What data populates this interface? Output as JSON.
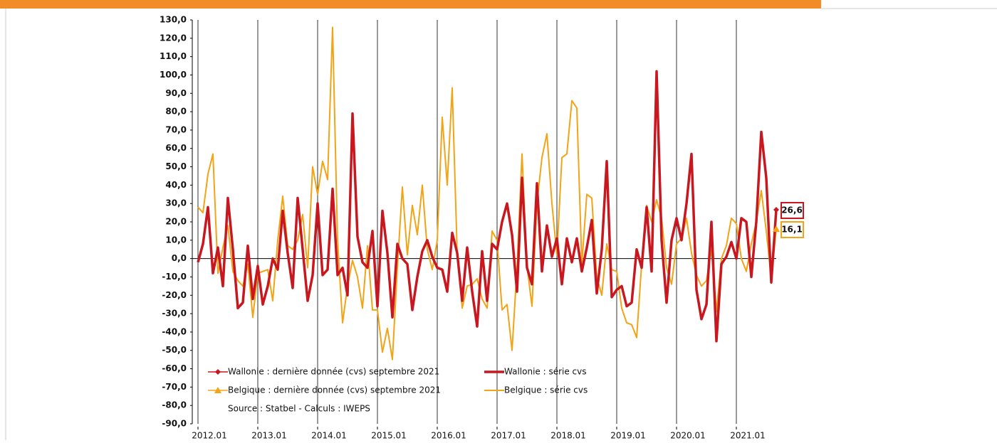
{
  "chart_data": {
    "type": "line",
    "categories": [
      "2012.01",
      null,
      null,
      null,
      null,
      null,
      null,
      null,
      null,
      null,
      null,
      null,
      "2013.01",
      null,
      null,
      null,
      null,
      null,
      null,
      null,
      null,
      null,
      null,
      null,
      "2014.01",
      null,
      null,
      null,
      null,
      null,
      null,
      null,
      null,
      null,
      null,
      null,
      "2015.01",
      null,
      null,
      null,
      null,
      null,
      null,
      null,
      null,
      null,
      null,
      null,
      "2016.01",
      null,
      null,
      null,
      null,
      null,
      null,
      null,
      null,
      null,
      null,
      null,
      "2017.01",
      null,
      null,
      null,
      null,
      null,
      null,
      null,
      null,
      null,
      null,
      null,
      "2018.01",
      null,
      null,
      null,
      null,
      null,
      null,
      null,
      null,
      null,
      null,
      null,
      "2019.01",
      null,
      null,
      null,
      null,
      null,
      null,
      null,
      null,
      null,
      null,
      null,
      "2020.01",
      null,
      null,
      null,
      null,
      null,
      null,
      null,
      null,
      null,
      null,
      null,
      "2021.01",
      null,
      null,
      null,
      null,
      null,
      null,
      null,
      null
    ],
    "series": [
      {
        "name": "Wallonie : dernière donnée (cvs) septembre 2021",
        "color": "#c8171e",
        "marker": "diamond",
        "values": [
          null,
          null,
          null,
          null,
          null,
          null,
          null,
          null,
          null,
          null,
          null,
          null,
          null,
          null,
          null,
          null,
          null,
          null,
          null,
          null,
          null,
          null,
          null,
          null,
          null,
          null,
          null,
          null,
          null,
          null,
          null,
          null,
          null,
          null,
          null,
          null,
          null,
          null,
          null,
          null,
          null,
          null,
          null,
          null,
          null,
          null,
          null,
          null,
          null,
          null,
          null,
          null,
          null,
          null,
          null,
          null,
          null,
          null,
          null,
          null,
          null,
          null,
          null,
          null,
          null,
          null,
          null,
          null,
          null,
          null,
          null,
          null,
          null,
          null,
          null,
          null,
          null,
          null,
          null,
          null,
          null,
          null,
          null,
          null,
          null,
          null,
          null,
          null,
          null,
          null,
          null,
          null,
          null,
          null,
          null,
          null,
          null,
          null,
          null,
          null,
          null,
          null,
          null,
          null,
          null,
          null,
          null,
          null,
          null,
          null,
          null,
          null,
          null,
          null,
          null,
          null,
          26.6
        ],
        "value_labels": [
          null,
          null,
          null,
          null,
          null,
          null,
          null,
          null,
          null,
          null,
          null,
          null,
          null,
          null,
          null,
          null,
          null,
          null,
          null,
          null,
          null,
          null,
          null,
          null,
          null,
          null,
          null,
          null,
          null,
          null,
          null,
          null,
          null,
          null,
          null,
          null,
          null,
          null,
          null,
          null,
          null,
          null,
          null,
          null,
          null,
          null,
          null,
          null,
          null,
          null,
          null,
          null,
          null,
          null,
          null,
          null,
          null,
          null,
          null,
          null,
          null,
          null,
          null,
          null,
          null,
          null,
          null,
          null,
          null,
          null,
          null,
          null,
          null,
          null,
          null,
          null,
          null,
          null,
          null,
          null,
          null,
          null,
          null,
          null,
          null,
          null,
          null,
          null,
          null,
          null,
          null,
          null,
          null,
          null,
          null,
          null,
          null,
          null,
          null,
          null,
          null,
          null,
          null,
          null,
          null,
          null,
          null,
          null,
          null,
          null,
          null,
          null,
          null,
          null,
          null,
          null,
          "26,6"
        ]
      },
      {
        "name": "Wallonie : série cvs",
        "color": "#c8171e",
        "width": 3.5,
        "values": [
          -2,
          8,
          28,
          -8,
          6,
          -15,
          33,
          5,
          -27,
          -24,
          7,
          -22,
          -4,
          -25,
          -15,
          0,
          -6,
          26,
          3,
          -16,
          33,
          5,
          -23,
          -9,
          30,
          -9,
          -6,
          38,
          -9,
          -5,
          -20,
          79,
          12,
          -2,
          -5,
          15,
          -26,
          26,
          3,
          -32,
          8,
          0,
          -3,
          -28,
          -10,
          4,
          10,
          1,
          -5,
          -6,
          -18,
          14,
          3,
          -23,
          6,
          -18,
          -37,
          4,
          -23,
          8,
          5,
          20,
          30,
          13,
          -18,
          44,
          -5,
          -14,
          41,
          -7,
          18,
          1,
          11,
          -14,
          11,
          -2,
          11,
          -7,
          6,
          21,
          -19,
          5,
          53,
          -21,
          -17,
          -15,
          -26,
          -24,
          5,
          -5,
          28,
          -7,
          102,
          10,
          -24,
          10,
          22,
          10,
          30,
          57,
          -17,
          -33,
          -25,
          20,
          -45,
          -3,
          1,
          9,
          0,
          22,
          20,
          -10,
          20,
          69,
          44,
          -13,
          26.6
        ]
      },
      {
        "name": "Belgique : dernière donnée (cvs) septembre 2021",
        "color": "#f2a416",
        "marker": "triangle",
        "values": [
          null,
          null,
          null,
          null,
          null,
          null,
          null,
          null,
          null,
          null,
          null,
          null,
          null,
          null,
          null,
          null,
          null,
          null,
          null,
          null,
          null,
          null,
          null,
          null,
          null,
          null,
          null,
          null,
          null,
          null,
          null,
          null,
          null,
          null,
          null,
          null,
          null,
          null,
          null,
          null,
          null,
          null,
          null,
          null,
          null,
          null,
          null,
          null,
          null,
          null,
          null,
          null,
          null,
          null,
          null,
          null,
          null,
          null,
          null,
          null,
          null,
          null,
          null,
          null,
          null,
          null,
          null,
          null,
          null,
          null,
          null,
          null,
          null,
          null,
          null,
          null,
          null,
          null,
          null,
          null,
          null,
          null,
          null,
          null,
          null,
          null,
          null,
          null,
          null,
          null,
          null,
          null,
          null,
          null,
          null,
          null,
          null,
          null,
          null,
          null,
          null,
          null,
          null,
          null,
          null,
          null,
          null,
          null,
          null,
          null,
          null,
          null,
          null,
          null,
          null,
          null,
          16.1
        ],
        "value_labels": [
          null,
          null,
          null,
          null,
          null,
          null,
          null,
          null,
          null,
          null,
          null,
          null,
          null,
          null,
          null,
          null,
          null,
          null,
          null,
          null,
          null,
          null,
          null,
          null,
          null,
          null,
          null,
          null,
          null,
          null,
          null,
          null,
          null,
          null,
          null,
          null,
          null,
          null,
          null,
          null,
          null,
          null,
          null,
          null,
          null,
          null,
          null,
          null,
          null,
          null,
          null,
          null,
          null,
          null,
          null,
          null,
          null,
          null,
          null,
          null,
          null,
          null,
          null,
          null,
          null,
          null,
          null,
          null,
          null,
          null,
          null,
          null,
          null,
          null,
          null,
          null,
          null,
          null,
          null,
          null,
          null,
          null,
          null,
          null,
          null,
          null,
          null,
          null,
          null,
          null,
          null,
          null,
          null,
          null,
          null,
          null,
          null,
          null,
          null,
          null,
          null,
          null,
          null,
          null,
          null,
          null,
          null,
          null,
          null,
          null,
          null,
          null,
          null,
          null,
          null,
          null,
          "16,1"
        ]
      },
      {
        "name": "Belgique : série cvs",
        "color": "#f2a416",
        "width": 2,
        "values": [
          28,
          25,
          46,
          57,
          -8,
          6,
          18,
          -7,
          -12,
          -15,
          -3,
          -32,
          -8,
          -7,
          -6,
          -23,
          10,
          34,
          7,
          5,
          10,
          24,
          -5,
          50,
          35,
          53,
          43,
          126,
          10,
          -35,
          -15,
          -1,
          -10,
          -27,
          7,
          -28,
          -28,
          -51,
          -38,
          -55,
          -5,
          39,
          2,
          29,
          13,
          40,
          5,
          -6,
          10,
          77,
          40,
          93,
          3,
          -27,
          -15,
          -14,
          -11,
          -22,
          -27,
          15,
          10,
          -28,
          -25,
          -50,
          -5,
          57,
          -4,
          -26,
          30,
          55,
          68,
          30,
          2,
          55,
          57,
          86,
          82,
          -3,
          35,
          33,
          -10,
          -20,
          8,
          -6,
          -7,
          -27,
          -35,
          -36,
          -43,
          -3,
          29,
          20,
          32,
          22,
          -5,
          -14,
          8,
          11,
          22,
          3,
          -9,
          -15,
          -12,
          5,
          -29,
          0,
          7,
          22,
          19,
          0,
          -7,
          8,
          20,
          37,
          15,
          -11,
          16.1
        ]
      }
    ],
    "ylim": [
      -90,
      130
    ],
    "yticks": [
      {
        "value": 130,
        "label": "130,0"
      },
      {
        "value": 120,
        "label": "120,0"
      },
      {
        "value": 110,
        "label": "110,0"
      },
      {
        "value": 100,
        "label": "100,0"
      },
      {
        "value": 90,
        "label": "90,0"
      },
      {
        "value": 80,
        "label": "80,0"
      },
      {
        "value": 70,
        "label": "70,0"
      },
      {
        "value": 60,
        "label": "60,0"
      },
      {
        "value": 50,
        "label": "50,0"
      },
      {
        "value": 40,
        "label": "40,0"
      },
      {
        "value": 30,
        "label": "30,0"
      },
      {
        "value": 20,
        "label": "20,0"
      },
      {
        "value": 10,
        "label": "10,0"
      },
      {
        "value": 0,
        "label": "0,0"
      },
      {
        "value": -10,
        "label": "-10,0"
      },
      {
        "value": -20,
        "label": "-20,0"
      },
      {
        "value": -30,
        "label": "-30,0"
      },
      {
        "value": -40,
        "label": "-40,0"
      },
      {
        "value": -50,
        "label": "-50,0"
      },
      {
        "value": -60,
        "label": "-60,0"
      },
      {
        "value": -70,
        "label": "-70,0"
      },
      {
        "value": -80,
        "label": "-80,0"
      },
      {
        "value": -90,
        "label": "-90,0"
      }
    ],
    "source": "Source : Statbel - Calculs : IWEPS"
  }
}
